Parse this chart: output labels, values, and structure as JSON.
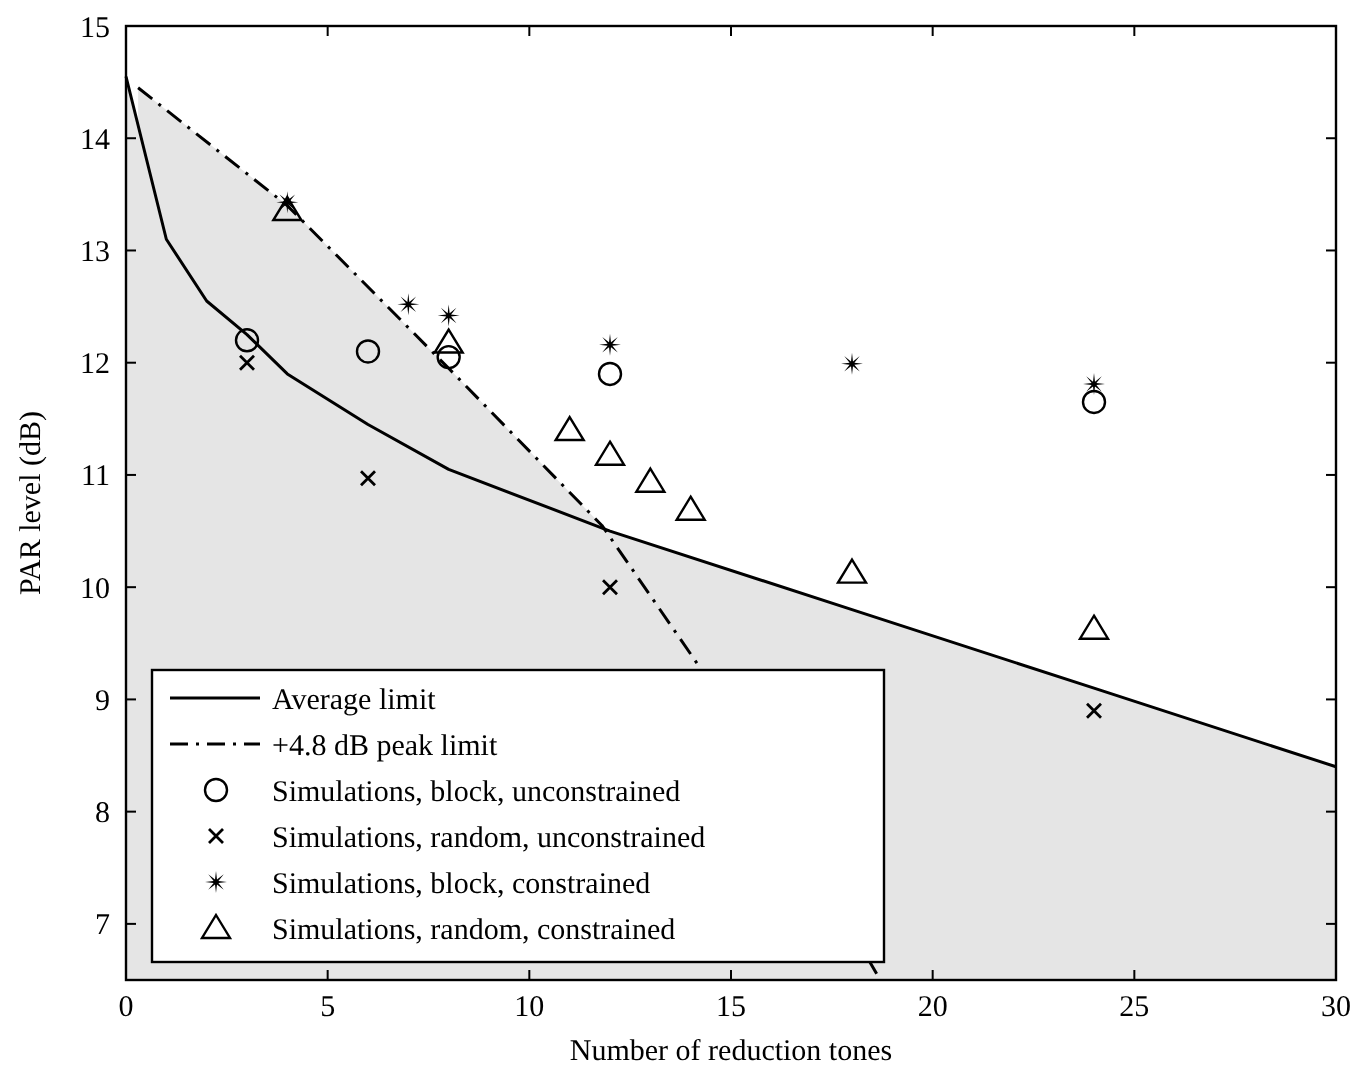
{
  "chart_data": {
    "type": "scatter",
    "xlabel": "Number of reduction tones",
    "ylabel": "PAR level (dB)",
    "xlim": [
      0,
      30
    ],
    "ylim": [
      6.5,
      15
    ],
    "xticks": [
      0,
      5,
      10,
      15,
      20,
      25,
      30
    ],
    "yticks": [
      7,
      8,
      9,
      10,
      11,
      12,
      13,
      14,
      15
    ],
    "grid": false,
    "legend": "bottom left",
    "series": [
      {
        "name": "Average limit",
        "type": "area",
        "color": "#e5e5e5",
        "line_style": "solid",
        "x": [
          0,
          1,
          2,
          3,
          4,
          6,
          8,
          12,
          18,
          24,
          30
        ],
        "values": [
          14.55,
          13.1,
          12.55,
          12.25,
          11.9,
          11.45,
          11.05,
          10.5,
          9.8,
          9.1,
          8.4
        ]
      },
      {
        "name": "+4.8 dB peak limit",
        "type": "area",
        "color": "#e5e5e5",
        "line_style": "dashed",
        "x": [
          0.3,
          4,
          8,
          11.8,
          14.2,
          18.7
        ],
        "values": [
          14.45,
          13.4,
          11.95,
          10.55,
          9.3,
          6.5
        ]
      },
      {
        "name": "Simulations, block, unconstrained",
        "color": "#000000",
        "marker": "circle",
        "x": [
          3,
          6,
          8,
          12,
          24
        ],
        "values": [
          12.2,
          12.1,
          12.05,
          11.9,
          11.65
        ]
      },
      {
        "name": "Simulations, random, unconstrained",
        "color": "#000000",
        "marker": "cross",
        "x": [
          3,
          6,
          12,
          24
        ],
        "values": [
          12.0,
          10.97,
          10.0,
          8.9
        ]
      },
      {
        "name": "Simulations, block, constrained",
        "color": "#000000",
        "marker": "star",
        "x": [
          4,
          7,
          8,
          12,
          18,
          24
        ],
        "values": [
          13.43,
          12.52,
          12.42,
          12.16,
          11.99,
          11.81
        ]
      },
      {
        "name": "Simulations, random, constrained",
        "color": "#000000",
        "marker": "triangle",
        "x": [
          4,
          8,
          11,
          12,
          13,
          14,
          18,
          24
        ],
        "values": [
          13.36,
          12.18,
          11.4,
          11.18,
          10.94,
          10.69,
          10.13,
          9.63
        ]
      }
    ]
  }
}
